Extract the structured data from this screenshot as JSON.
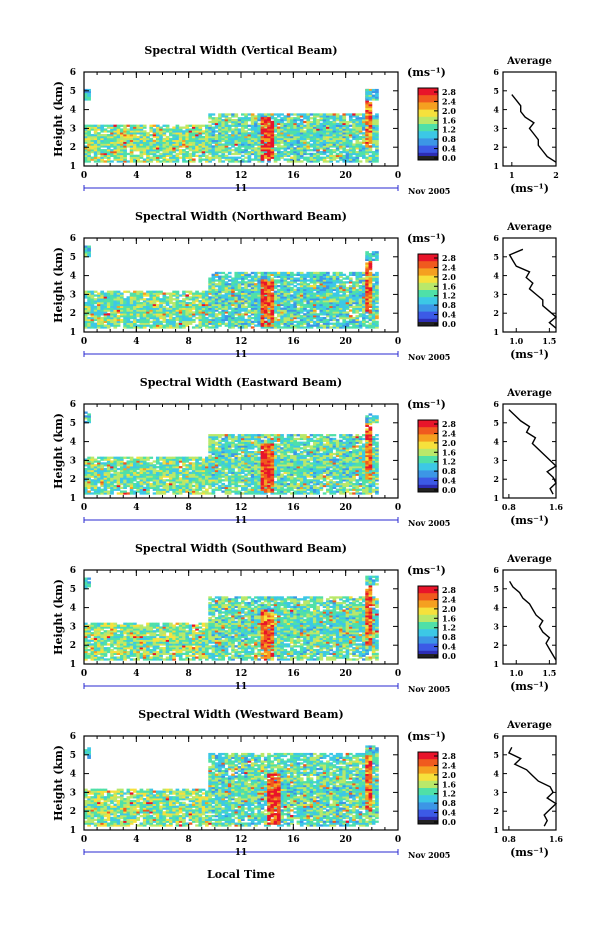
{
  "figure": {
    "xlabel_bottom": "Local Time",
    "date_label": "Nov 2005",
    "day_label": "11",
    "units_label": "(ms⁻¹)",
    "avg_title": "Average",
    "avg_xlabel": "(ms⁻¹)",
    "ylabel": "Height (km)"
  },
  "colorbar": {
    "ticks": [
      "2.8",
      "2.4",
      "2.0",
      "1.6",
      "1.2",
      "0.8",
      "0.4",
      "0.0"
    ],
    "colors": [
      "#e8142a",
      "#f05a1e",
      "#f5a020",
      "#f6e13c",
      "#b9e86a",
      "#4fe0a8",
      "#3cc8e6",
      "#3c96e6",
      "#3c5ae6",
      "#2d2db4"
    ]
  },
  "chart_data": [
    {
      "type": "heatmap",
      "title": "Spectral Width (Vertical Beam)",
      "xlabel": "Local Time",
      "ylabel": "Height (km)",
      "xlim": [
        0,
        24
      ],
      "ylim": [
        1,
        6
      ],
      "x_ticks": [
        "0",
        "4",
        "8",
        "12",
        "16",
        "20",
        "0"
      ],
      "y_ticks": [
        "1",
        "2",
        "3",
        "4",
        "5",
        "6"
      ],
      "colorbar_range": [
        0.0,
        2.8
      ],
      "colorbar_label": "(ms⁻¹)",
      "regions": [
        {
          "t0": 0.0,
          "t1": 0.5,
          "h0": 4.5,
          "h1": 5.0,
          "value": 1.0
        },
        {
          "t0": 0.0,
          "t1": 9.5,
          "h0": 1.2,
          "h1": 3.2,
          "value": 1.4
        },
        {
          "t0": 9.5,
          "t1": 22.5,
          "h0": 1.2,
          "h1": 3.8,
          "value": 1.2
        },
        {
          "t0": 13.5,
          "t1": 14.5,
          "h0": 1.3,
          "h1": 3.6,
          "value": 2.6
        },
        {
          "t0": 21.5,
          "t1": 22.0,
          "h0": 2.0,
          "h1": 5.0,
          "value": 2.4
        },
        {
          "t0": 21.5,
          "t1": 22.5,
          "h0": 4.5,
          "h1": 5.0,
          "value": 1.0
        }
      ],
      "average": {
        "xlim": [
          0.8,
          2.0
        ],
        "x_ticks": [
          "1",
          "2"
        ],
        "height": [
          1.2,
          1.5,
          1.8,
          2.1,
          2.4,
          2.7,
          3.0,
          3.3,
          3.6,
          3.9,
          4.2,
          4.5,
          4.8
        ],
        "value": [
          2.0,
          1.8,
          1.7,
          1.6,
          1.6,
          1.5,
          1.4,
          1.5,
          1.3,
          1.2,
          1.2,
          1.1,
          1.0
        ]
      }
    },
    {
      "type": "heatmap",
      "title": "Spectral Width (Northward Beam)",
      "xlabel": "Local Time",
      "ylabel": "Height (km)",
      "xlim": [
        0,
        24
      ],
      "ylim": [
        1,
        6
      ],
      "x_ticks": [
        "0",
        "4",
        "8",
        "12",
        "16",
        "20",
        "0"
      ],
      "y_ticks": [
        "1",
        "2",
        "3",
        "4",
        "5",
        "6"
      ],
      "colorbar_range": [
        0.0,
        2.8
      ],
      "colorbar_label": "(ms⁻¹)",
      "regions": [
        {
          "t0": 0.0,
          "t1": 0.5,
          "h0": 5.0,
          "h1": 5.5,
          "value": 1.0
        },
        {
          "t0": 0.0,
          "t1": 9.5,
          "h0": 1.2,
          "h1": 3.2,
          "value": 1.3
        },
        {
          "t0": 9.5,
          "t1": 22.5,
          "h0": 1.2,
          "h1": 4.2,
          "value": 1.1
        },
        {
          "t0": 13.5,
          "t1": 14.5,
          "h0": 1.3,
          "h1": 3.8,
          "value": 2.5
        },
        {
          "t0": 21.5,
          "t1": 22.0,
          "h0": 2.0,
          "h1": 5.0,
          "value": 2.4
        },
        {
          "t0": 21.5,
          "t1": 22.5,
          "h0": 4.8,
          "h1": 5.2,
          "value": 1.0
        }
      ],
      "average": {
        "xlim": [
          0.8,
          1.6
        ],
        "x_ticks": [
          "1.0",
          "1.5"
        ],
        "height": [
          1.2,
          1.5,
          1.8,
          2.1,
          2.4,
          2.7,
          3.0,
          3.3,
          3.6,
          3.9,
          4.2,
          4.5,
          4.8,
          5.1,
          5.4
        ],
        "value": [
          1.6,
          1.5,
          1.6,
          1.5,
          1.4,
          1.4,
          1.3,
          1.2,
          1.25,
          1.15,
          1.2,
          1.0,
          0.95,
          0.9,
          1.1
        ]
      }
    },
    {
      "type": "heatmap",
      "title": "Spectral Width (Eastward Beam)",
      "xlabel": "Local Time",
      "ylabel": "Height (km)",
      "xlim": [
        0,
        24
      ],
      "ylim": [
        1,
        6
      ],
      "x_ticks": [
        "0",
        "4",
        "8",
        "12",
        "16",
        "20",
        "0"
      ],
      "y_ticks": [
        "1",
        "2",
        "3",
        "4",
        "5",
        "6"
      ],
      "colorbar_range": [
        0.0,
        2.8
      ],
      "colorbar_label": "(ms⁻¹)",
      "regions": [
        {
          "t0": 0.0,
          "t1": 0.5,
          "h0": 5.0,
          "h1": 5.5,
          "value": 1.0
        },
        {
          "t0": 0.0,
          "t1": 9.5,
          "h0": 1.2,
          "h1": 3.2,
          "value": 1.3
        },
        {
          "t0": 9.5,
          "t1": 22.5,
          "h0": 1.2,
          "h1": 4.4,
          "value": 1.2
        },
        {
          "t0": 13.5,
          "t1": 14.5,
          "h0": 1.3,
          "h1": 3.9,
          "value": 2.6
        },
        {
          "t0": 21.5,
          "t1": 22.0,
          "h0": 2.0,
          "h1": 5.2,
          "value": 2.4
        },
        {
          "t0": 21.5,
          "t1": 22.5,
          "h0": 5.0,
          "h1": 5.4,
          "value": 1.0
        }
      ],
      "average": {
        "xlim": [
          0.7,
          1.6
        ],
        "x_ticks": [
          "0.8",
          "1.6"
        ],
        "height": [
          1.2,
          1.5,
          1.8,
          2.1,
          2.4,
          2.7,
          3.0,
          3.3,
          3.6,
          3.9,
          4.2,
          4.5,
          4.8,
          5.1,
          5.4,
          5.7
        ],
        "value": [
          1.55,
          1.5,
          1.6,
          1.55,
          1.45,
          1.6,
          1.5,
          1.4,
          1.3,
          1.2,
          1.25,
          1.1,
          1.15,
          1.0,
          0.9,
          0.8
        ]
      }
    },
    {
      "type": "heatmap",
      "title": "Spectral Width (Southward Beam)",
      "xlabel": "Local Time",
      "ylabel": "Height (km)",
      "xlim": [
        0,
        24
      ],
      "ylim": [
        1,
        6
      ],
      "x_ticks": [
        "0",
        "4",
        "8",
        "12",
        "16",
        "20",
        "0"
      ],
      "y_ticks": [
        "1",
        "2",
        "3",
        "4",
        "5",
        "6"
      ],
      "colorbar_range": [
        0.0,
        2.8
      ],
      "colorbar_label": "(ms⁻¹)",
      "regions": [
        {
          "t0": 0.0,
          "t1": 0.5,
          "h0": 5.0,
          "h1": 5.5,
          "value": 1.0
        },
        {
          "t0": 0.0,
          "t1": 9.5,
          "h0": 1.2,
          "h1": 3.2,
          "value": 1.4
        },
        {
          "t0": 9.5,
          "t1": 22.5,
          "h0": 1.2,
          "h1": 4.6,
          "value": 1.2
        },
        {
          "t0": 13.5,
          "t1": 14.5,
          "h0": 1.3,
          "h1": 3.9,
          "value": 2.4
        },
        {
          "t0": 21.5,
          "t1": 22.0,
          "h0": 2.0,
          "h1": 5.2,
          "value": 2.4
        },
        {
          "t0": 21.5,
          "t1": 22.5,
          "h0": 5.2,
          "h1": 5.6,
          "value": 1.0
        }
      ],
      "average": {
        "xlim": [
          0.8,
          1.6
        ],
        "x_ticks": [
          "1.0",
          "1.5"
        ],
        "height": [
          1.2,
          1.5,
          1.8,
          2.1,
          2.4,
          2.7,
          3.0,
          3.3,
          3.6,
          3.9,
          4.2,
          4.5,
          4.8,
          5.1,
          5.4
        ],
        "value": [
          1.6,
          1.55,
          1.5,
          1.45,
          1.5,
          1.4,
          1.35,
          1.4,
          1.3,
          1.25,
          1.2,
          1.1,
          1.05,
          0.95,
          0.9
        ]
      }
    },
    {
      "type": "heatmap",
      "title": "Spectral Width (Westward Beam)",
      "xlabel": "Local Time",
      "ylabel": "Height (km)",
      "xlim": [
        0,
        24
      ],
      "ylim": [
        1,
        6
      ],
      "x_ticks": [
        "0",
        "4",
        "8",
        "12",
        "16",
        "20",
        "0"
      ],
      "y_ticks": [
        "1",
        "2",
        "3",
        "4",
        "5",
        "6"
      ],
      "colorbar_range": [
        0.0,
        2.8
      ],
      "colorbar_label": "(ms⁻¹)",
      "regions": [
        {
          "t0": 0.0,
          "t1": 0.5,
          "h0": 4.8,
          "h1": 5.3,
          "value": 1.0
        },
        {
          "t0": 0.0,
          "t1": 9.5,
          "h0": 1.2,
          "h1": 3.2,
          "value": 1.4
        },
        {
          "t0": 9.5,
          "t1": 22.5,
          "h0": 1.2,
          "h1": 5.0,
          "value": 1.2
        },
        {
          "t0": 14.0,
          "t1": 15.0,
          "h0": 1.3,
          "h1": 4.0,
          "value": 2.6
        },
        {
          "t0": 21.5,
          "t1": 22.0,
          "h0": 2.0,
          "h1": 5.3,
          "value": 2.4
        },
        {
          "t0": 21.5,
          "t1": 22.5,
          "h0": 5.0,
          "h1": 5.4,
          "value": 1.0
        }
      ],
      "average": {
        "xlim": [
          0.7,
          1.6
        ],
        "x_ticks": [
          "0.8",
          "1.6"
        ],
        "height": [
          1.2,
          1.5,
          1.8,
          2.1,
          2.4,
          2.7,
          3.0,
          3.3,
          3.6,
          3.9,
          4.2,
          4.5,
          4.8,
          5.1,
          5.4
        ],
        "value": [
          1.4,
          1.45,
          1.4,
          1.5,
          1.6,
          1.45,
          1.55,
          1.5,
          1.3,
          1.2,
          1.1,
          0.9,
          1.0,
          0.8,
          0.85
        ]
      }
    }
  ]
}
